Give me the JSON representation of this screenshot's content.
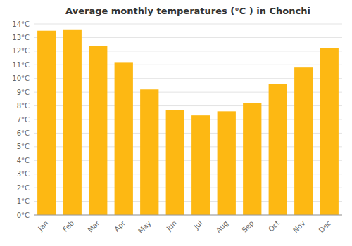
{
  "chart_data": {
    "type": "bar",
    "title": "Average monthly temperatures (°C ) in Chonchi",
    "categories": [
      "Jan",
      "Feb",
      "Mar",
      "Apr",
      "May",
      "Jun",
      "Jul",
      "Aug",
      "Sep",
      "Oct",
      "Nov",
      "Dec"
    ],
    "values": [
      13.5,
      13.6,
      12.4,
      11.2,
      9.2,
      7.7,
      7.3,
      7.6,
      8.2,
      9.6,
      10.8,
      12.2
    ],
    "color": "#FDB813",
    "ylim": [
      0,
      14
    ],
    "yticks": [
      {
        "value": 0,
        "label": "0°C"
      },
      {
        "value": 1,
        "label": "1°C"
      },
      {
        "value": 2,
        "label": "2°C"
      },
      {
        "value": 3,
        "label": "3°C"
      },
      {
        "value": 4,
        "label": "4°C"
      },
      {
        "value": 5,
        "label": "5°C"
      },
      {
        "value": 6,
        "label": "6°C"
      },
      {
        "value": 7,
        "label": "7°C"
      },
      {
        "value": 8,
        "label": "8°C"
      },
      {
        "value": 9,
        "label": "9°C"
      },
      {
        "value": 10,
        "label": "10°C"
      },
      {
        "value": 11,
        "label": "11°C"
      },
      {
        "value": 12,
        "label": "12°C"
      },
      {
        "value": 13,
        "label": "13°C"
      },
      {
        "value": 14,
        "label": "14°C"
      }
    ],
    "grid": true
  }
}
